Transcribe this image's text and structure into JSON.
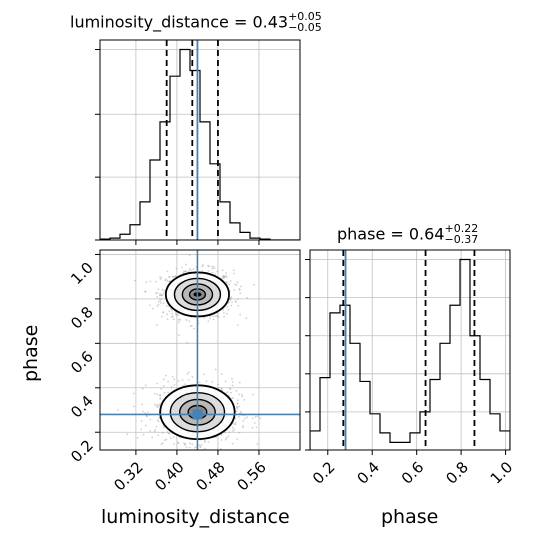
{
  "chart_data": {
    "type": "corner",
    "parameters": [
      "luminosity_distance",
      "phase"
    ],
    "truths": {
      "luminosity_distance": 0.44,
      "phase": 0.28
    },
    "titles": [
      {
        "param": "luminosity_distance",
        "text": "luminosity_distance = 0.43",
        "plus": "+0.05",
        "minus": "−0.05",
        "median": 0.43,
        "lower": 0.38,
        "upper": 0.48
      },
      {
        "param": "phase",
        "text": "phase = 0.64",
        "plus": "+0.22",
        "minus": "−0.37",
        "median": 0.64,
        "lower": 0.27,
        "upper": 0.86
      }
    ],
    "xlabels": [
      "luminosity_distance",
      "phase"
    ],
    "ylabels": [
      "phase"
    ],
    "luminosity_distance_axis": {
      "range": [
        0.25,
        0.64
      ],
      "ticks": [
        0.32,
        0.4,
        0.48,
        0.56
      ],
      "tick_labels": [
        "0.32",
        "0.40",
        "0.48",
        "0.56"
      ]
    },
    "phase_axis": {
      "range": [
        0.12,
        1.02
      ],
      "ticks": [
        0.2,
        0.4,
        0.6,
        0.8,
        1.0
      ],
      "tick_labels": [
        "0.2",
        "0.4",
        "0.6",
        "0.8",
        "1.0"
      ]
    },
    "hist_luminosity_distance": {
      "edges": [
        0.25,
        0.2695,
        0.289,
        0.3085,
        0.328,
        0.3475,
        0.367,
        0.3865,
        0.406,
        0.4255,
        0.445,
        0.4645,
        0.484,
        0.5035,
        0.523,
        0.5425,
        0.562,
        0.5815,
        0.601,
        0.6205,
        0.64
      ],
      "counts": [
        0.5,
        1,
        3,
        8,
        20,
        42,
        62,
        86,
        100,
        89,
        62,
        40,
        20,
        9,
        4,
        1,
        0.5,
        0,
        0,
        0
      ]
    },
    "hist_phase": {
      "edges": [
        0.12,
        0.165,
        0.21,
        0.255,
        0.3,
        0.345,
        0.39,
        0.435,
        0.48,
        0.525,
        0.57,
        0.615,
        0.66,
        0.705,
        0.75,
        0.795,
        0.84,
        0.885,
        0.93,
        0.975,
        1.02
      ],
      "counts": [
        10,
        38,
        72,
        76,
        56,
        36,
        19,
        9,
        4,
        4,
        9,
        20,
        37,
        56,
        76,
        100,
        60,
        37,
        19,
        10
      ]
    },
    "modes_2d": [
      {
        "luminosity_distance": 0.44,
        "phase": 0.82,
        "sd_x": 0.028,
        "sd_y": 0.045
      },
      {
        "luminosity_distance": 0.44,
        "phase": 0.29,
        "sd_x": 0.033,
        "sd_y": 0.055
      }
    ],
    "grid": true
  }
}
